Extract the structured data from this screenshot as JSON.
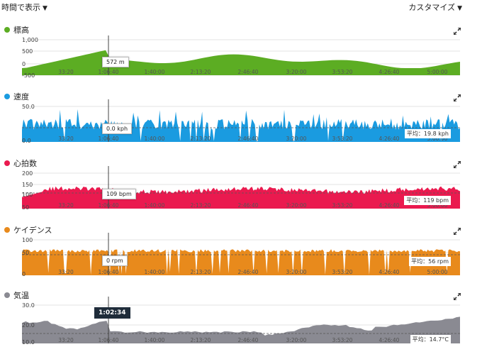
{
  "topbar": {
    "view_label": "時間で表示",
    "customize_label": "カスタマイズ"
  },
  "x_ticks": [
    "33:20",
    "1:06:40",
    "1:40:00",
    "2:13:20",
    "2:46:40",
    "3:20:00",
    "3:53:20",
    "4:26:40",
    "5:00:00"
  ],
  "panels": [
    {
      "key": "elevation",
      "title": "標高",
      "color": "#5cad23",
      "y_labels": [
        "1,000",
        "500",
        "0",
        "-500"
      ],
      "tooltip": "572 m",
      "avg": null
    },
    {
      "key": "speed",
      "title": "速度",
      "color": "#1a9be0",
      "y_labels": [
        "50.0",
        "0.0"
      ],
      "tooltip": "0.0 kph",
      "avg": "平均：19.8 kph"
    },
    {
      "key": "heartrate",
      "title": "心拍数",
      "color": "#ea1a4f",
      "y_labels": [
        "200",
        "150",
        "100",
        "50"
      ],
      "tooltip": "109 bpm",
      "avg": "平均：119 bpm"
    },
    {
      "key": "cadence",
      "title": "ケイデンス",
      "color": "#e88a1c",
      "y_labels": [
        "100",
        "50",
        "0"
      ],
      "tooltip": "0 rpm",
      "avg": "平均：56 rpm"
    },
    {
      "key": "temperature",
      "title": "気温",
      "color": "#8a8a92",
      "y_labels": [
        "30.0",
        "20.0",
        "10.0"
      ],
      "tooltip": null,
      "avg": "平均：14.7°C"
    }
  ],
  "cursor_time": "1:02:34",
  "icons": {
    "expand": "expand-icon",
    "caret": "caret-down-icon"
  }
}
